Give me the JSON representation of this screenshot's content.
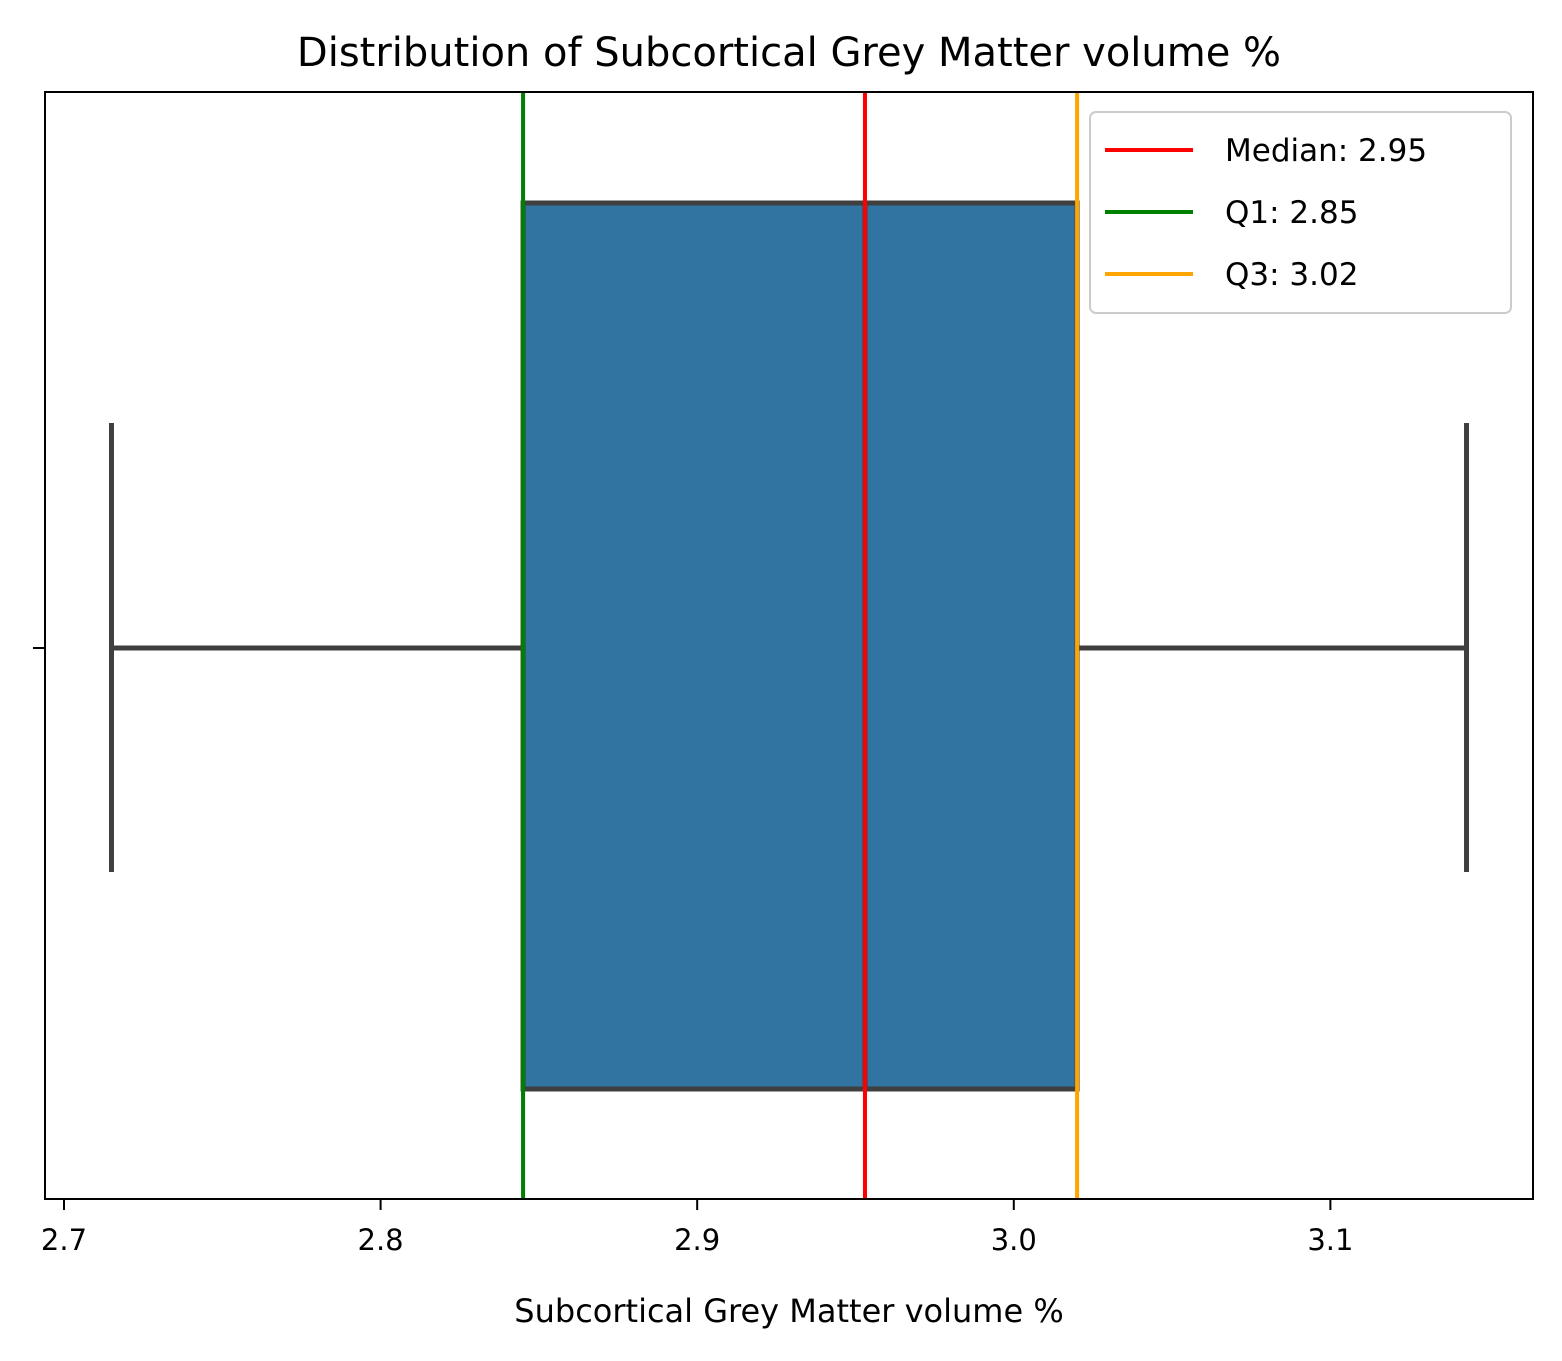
{
  "chart_data": {
    "type": "box",
    "title": "Distribution of Subcortical Grey Matter volume %",
    "xlabel": "Subcortical Grey Matter volume %",
    "ylabel": "",
    "xlim": [
      2.694,
      3.164
    ],
    "x_ticks": [
      2.7,
      2.8,
      2.9,
      3.0,
      3.1
    ],
    "x_tick_labels": [
      "2.7",
      "2.8",
      "2.9",
      "3.0",
      "3.1"
    ],
    "grid": false,
    "box": {
      "whisker_low": 2.715,
      "q1": 2.845,
      "median": 2.953,
      "q3": 3.02,
      "whisker_high": 3.143,
      "fill_color": "#3274a1",
      "line_color": "#3f3f3f"
    },
    "reference_lines": [
      {
        "name": "Median: 2.95",
        "x": 2.953,
        "color": "#ff0000"
      },
      {
        "name": "Q1: 2.85",
        "x": 2.845,
        "color": "#008000"
      },
      {
        "name": "Q3: 3.02",
        "x": 3.02,
        "color": "#ffa500"
      }
    ],
    "legend_placement": "top-right"
  }
}
